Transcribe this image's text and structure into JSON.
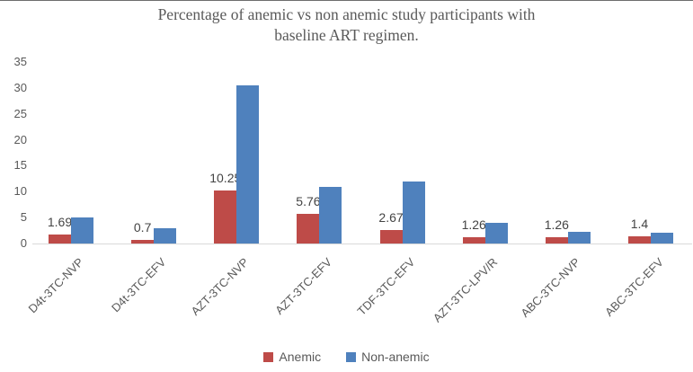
{
  "figure": {
    "title": "Percentage of anemic vs non anemic study participants with baseline ART regimen."
  },
  "chart_data": {
    "type": "bar",
    "title": "Percentage of anemic vs non anemic study participants with baseline ART regimen.",
    "categories": [
      "D4t-3TC-NVP",
      "D4t-3TC-EFV",
      "AZT-3TC-NVP",
      "AZT-3TC-EFV",
      "TDF-3TC-EFV",
      "AZT-3TC-LPV/R",
      "ABC-3TC-NVP",
      "ABC-3TC-EFV"
    ],
    "series": [
      {
        "name": "Anemic",
        "color": "#be4b48",
        "data_labels": true,
        "values": [
          1.69,
          0.7,
          10.25,
          5.76,
          2.67,
          1.26,
          1.26,
          1.4
        ]
      },
      {
        "name": "Non-anemic",
        "color": "#4f81bd",
        "data_labels": false,
        "values": [
          5,
          3,
          30.5,
          11,
          12,
          3.9,
          2.3,
          2
        ]
      }
    ],
    "xlabel": "",
    "ylabel": "",
    "ylim": [
      0,
      35
    ],
    "yticks": [
      0,
      5,
      10,
      15,
      20,
      25,
      30,
      35
    ],
    "grid": false,
    "legend_position": "bottom",
    "colors": {
      "title_text": "#595959",
      "axis_text": "#595959",
      "data_label_text": "#444444",
      "axis_line": "#d9d9d9"
    }
  }
}
